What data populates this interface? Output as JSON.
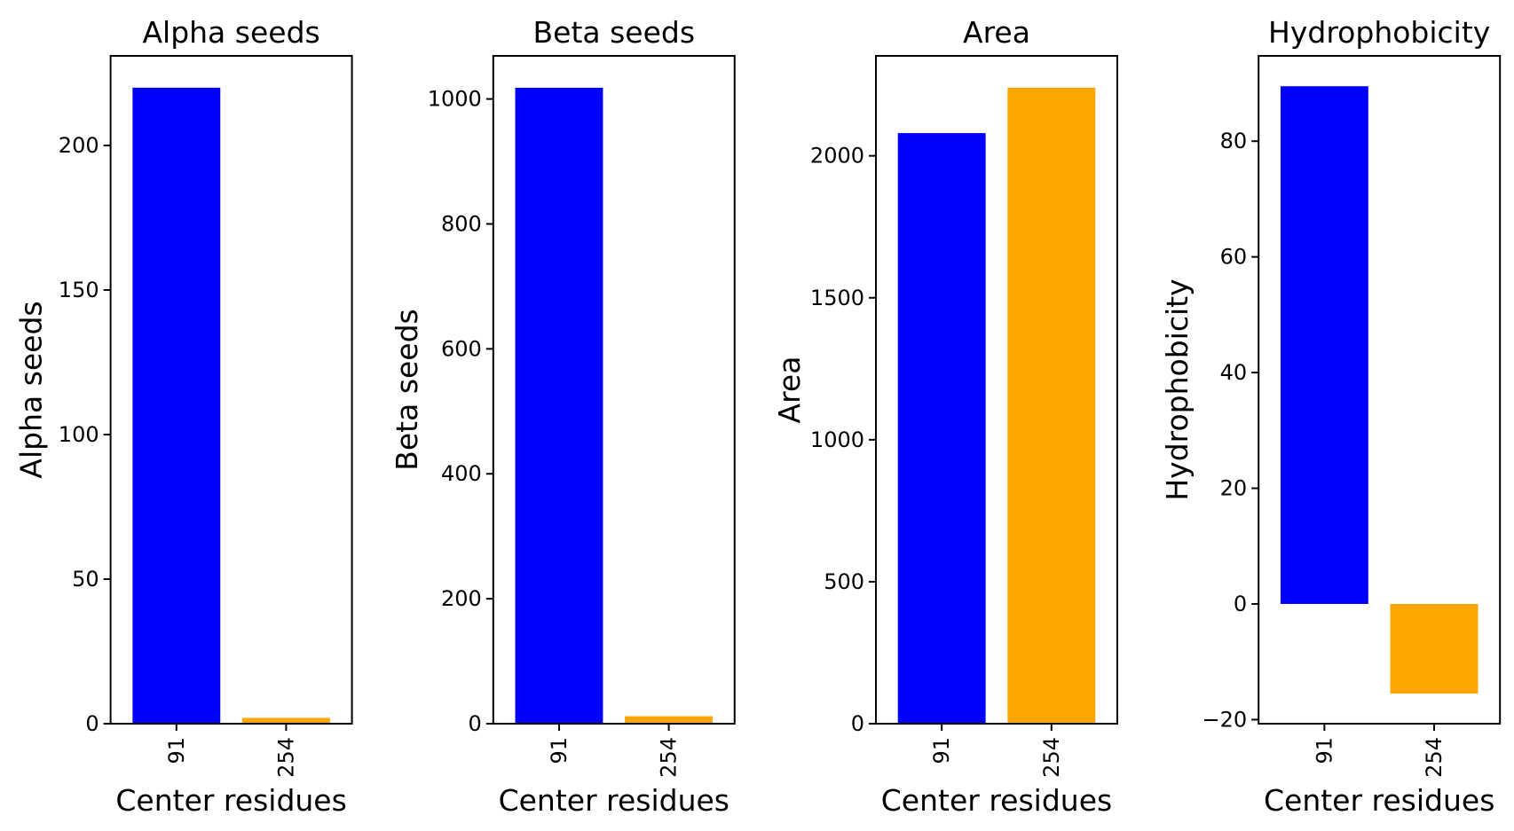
{
  "colors": {
    "blue": "#0000ff",
    "orange": "#ffa500",
    "axis": "#000000",
    "background": "#ffffff"
  },
  "chart_data": [
    {
      "type": "bar",
      "title": "Alpha seeds",
      "xlabel": "Center residues",
      "ylabel": "Alpha seeds",
      "categories": [
        "91",
        "254"
      ],
      "values": [
        220,
        2
      ],
      "bar_colors": [
        "#0000ff",
        "#ffa500"
      ],
      "ylim": [
        0,
        231
      ],
      "yticks": [
        0,
        50,
        100,
        150,
        200
      ],
      "grid": false,
      "legend": false
    },
    {
      "type": "bar",
      "title": "Beta seeds",
      "xlabel": "Center residues",
      "ylabel": "Beta seeds",
      "categories": [
        "91",
        "254"
      ],
      "values": [
        1018,
        12
      ],
      "bar_colors": [
        "#0000ff",
        "#ffa500"
      ],
      "ylim": [
        0,
        1069
      ],
      "yticks": [
        0,
        200,
        400,
        600,
        800,
        1000
      ],
      "grid": false,
      "legend": false
    },
    {
      "type": "bar",
      "title": "Area",
      "xlabel": "Center residues",
      "ylabel": "Area",
      "categories": [
        "91",
        "254"
      ],
      "values": [
        2080,
        2240
      ],
      "bar_colors": [
        "#0000ff",
        "#ffa500"
      ],
      "ylim": [
        0,
        2352
      ],
      "yticks": [
        0,
        500,
        1000,
        1500,
        2000
      ],
      "grid": false,
      "legend": false
    },
    {
      "type": "bar",
      "title": "Hydrophobicity",
      "xlabel": "Center residues",
      "ylabel": "Hydrophobicity",
      "categories": [
        "91",
        "254"
      ],
      "values": [
        89.5,
        -15.5
      ],
      "bar_colors": [
        "#0000ff",
        "#ffa500"
      ],
      "ylim": [
        -20.7,
        94.75
      ],
      "yticks": [
        -20,
        0,
        20,
        40,
        60,
        80
      ],
      "grid": false,
      "legend": false
    }
  ]
}
